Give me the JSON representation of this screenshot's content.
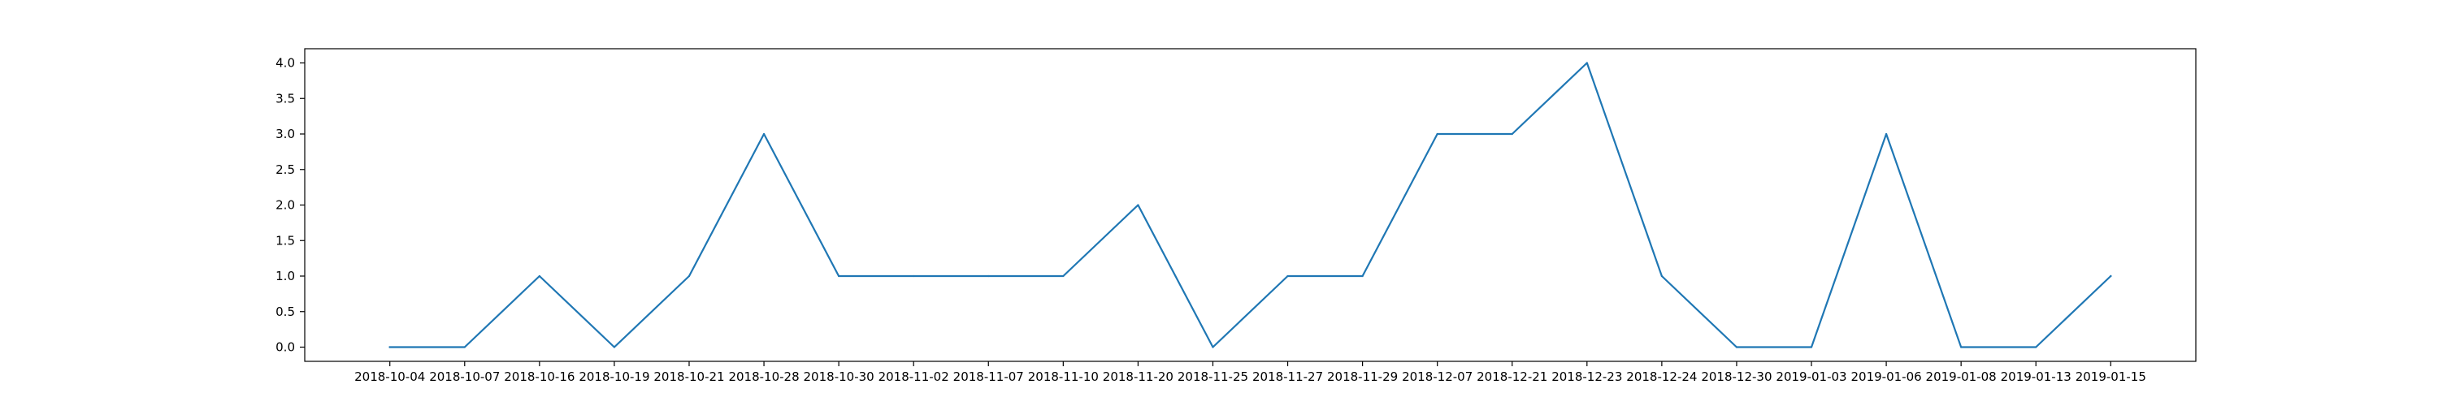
{
  "chart_data": {
    "type": "line",
    "title": "",
    "xlabel": "",
    "ylabel": "",
    "categories": [
      "2018-10-04",
      "2018-10-07",
      "2018-10-16",
      "2018-10-19",
      "2018-10-21",
      "2018-10-28",
      "2018-10-30",
      "2018-11-02",
      "2018-11-07",
      "2018-11-10",
      "2018-11-20",
      "2018-11-25",
      "2018-11-27",
      "2018-11-29",
      "2018-12-07",
      "2018-12-21",
      "2018-12-23",
      "2018-12-24",
      "2018-12-30",
      "2019-01-03",
      "2019-01-06",
      "2019-01-08",
      "2019-01-13",
      "2019-01-15"
    ],
    "series": [
      {
        "values": [
          0,
          0,
          1,
          0,
          1,
          3,
          1,
          1,
          1,
          1,
          2,
          0,
          1,
          1,
          3,
          3,
          4,
          1,
          0,
          0,
          3,
          0,
          0,
          1
        ],
        "color": "#1f77b4"
      }
    ],
    "ylim": [
      -0.2,
      4.2
    ],
    "y_ticks": [
      "0.0",
      "0.5",
      "1.0",
      "1.5",
      "2.0",
      "2.5",
      "3.0",
      "3.5",
      "4.0"
    ],
    "grid": false,
    "legend": "none"
  }
}
